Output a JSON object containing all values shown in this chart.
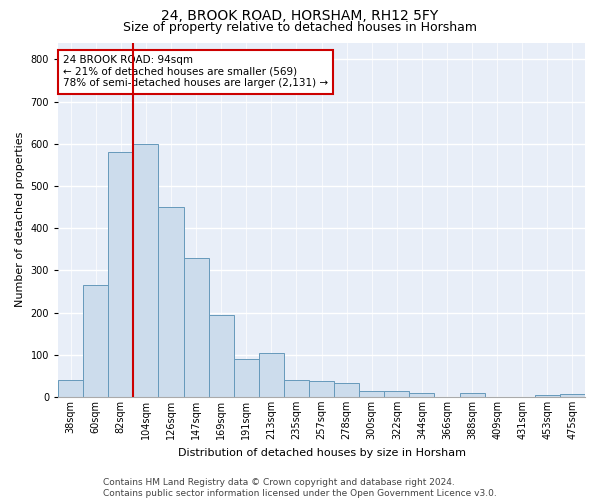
{
  "title": "24, BROOK ROAD, HORSHAM, RH12 5FY",
  "subtitle": "Size of property relative to detached houses in Horsham",
  "xlabel": "Distribution of detached houses by size in Horsham",
  "ylabel": "Number of detached properties",
  "categories": [
    "38sqm",
    "60sqm",
    "82sqm",
    "104sqm",
    "126sqm",
    "147sqm",
    "169sqm",
    "191sqm",
    "213sqm",
    "235sqm",
    "257sqm",
    "278sqm",
    "300sqm",
    "322sqm",
    "344sqm",
    "366sqm",
    "388sqm",
    "409sqm",
    "431sqm",
    "453sqm",
    "475sqm"
  ],
  "values": [
    40,
    265,
    580,
    600,
    450,
    330,
    193,
    90,
    103,
    40,
    38,
    32,
    15,
    15,
    10,
    0,
    10,
    0,
    0,
    5,
    8
  ],
  "bar_color": "#ccdcec",
  "bar_edge_color": "#6699bb",
  "line_color": "#cc0000",
  "line_x_index": 2.5,
  "annotation_text": "24 BROOK ROAD: 94sqm\n← 21% of detached houses are smaller (569)\n78% of semi-detached houses are larger (2,131) →",
  "annotation_box_color": "#ffffff",
  "annotation_box_edge_color": "#cc0000",
  "ylim": [
    0,
    840
  ],
  "yticks": [
    0,
    100,
    200,
    300,
    400,
    500,
    600,
    700,
    800
  ],
  "background_color": "#e8eef8",
  "grid_color": "#ffffff",
  "footer_line1": "Contains HM Land Registry data © Crown copyright and database right 2024.",
  "footer_line2": "Contains public sector information licensed under the Open Government Licence v3.0.",
  "title_fontsize": 10,
  "subtitle_fontsize": 9,
  "xlabel_fontsize": 8,
  "ylabel_fontsize": 8,
  "tick_fontsize": 7,
  "annotation_fontsize": 7.5,
  "footer_fontsize": 6.5
}
